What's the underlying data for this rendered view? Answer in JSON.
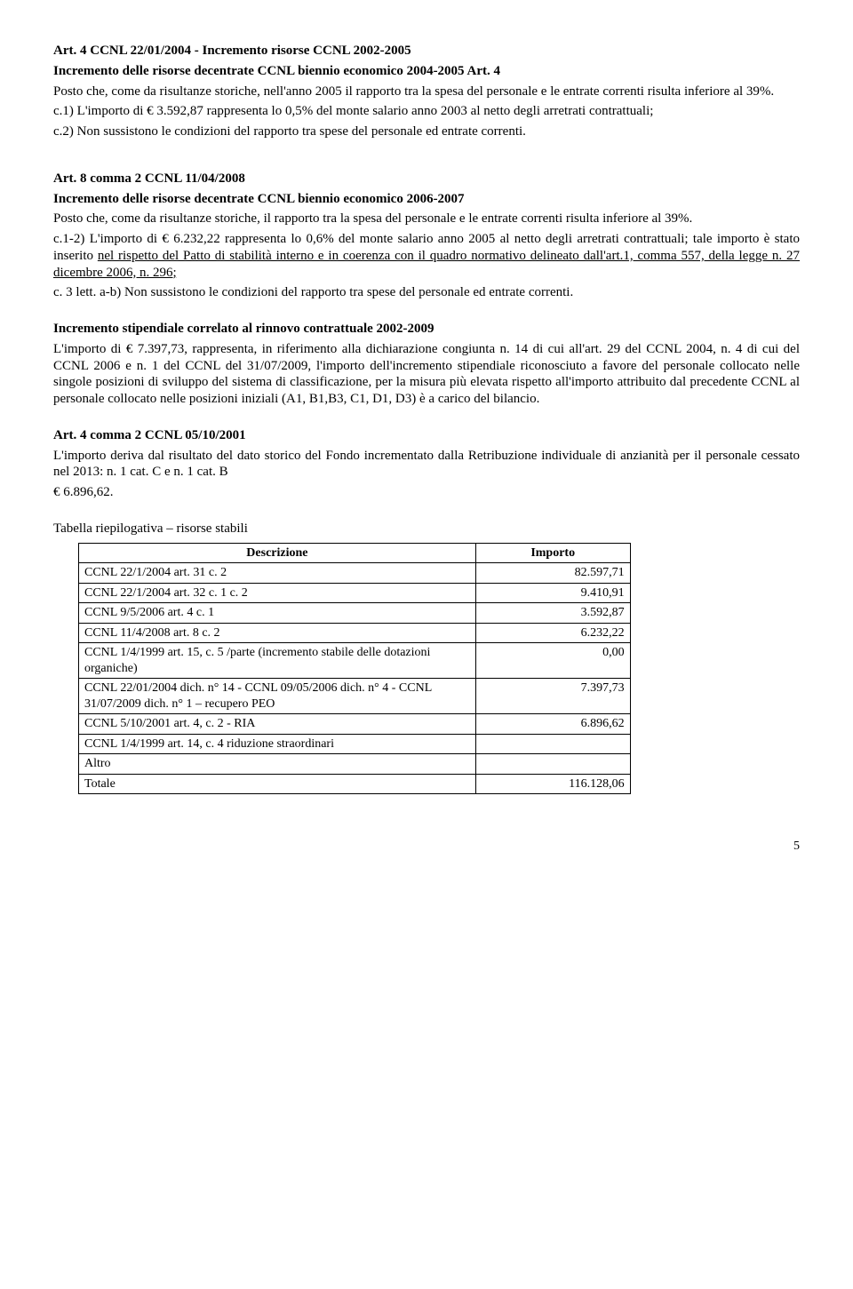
{
  "art4_2004": {
    "title": "Art. 4  CCNL 22/01/2004 - Incremento risorse CCNL 2002-2005",
    "sub": "Incremento delle risorse decentrate CCNL biennio economico 2004-2005 Art. 4",
    "p1": "Posto che, come da risultanze storiche, nell'anno 2005 il rapporto tra la spesa del personale e le entrate correnti risulta inferiore al 39%.",
    "p2": "c.1)  L'importo di €  3.592,87 rappresenta lo 0,5% del monte salario anno 2003 al netto degli arretrati contrattuali;",
    "p3": "c.2) Non sussistono le condizioni del rapporto tra spese del personale ed entrate correnti."
  },
  "art8_2008": {
    "title": "Art. 8 comma 2 CCNL 11/04/2008",
    "sub": "Incremento delle risorse decentrate CCNL biennio economico 2006-2007",
    "p1": "Posto che, come da risultanze storiche, il rapporto tra la spesa del personale e le entrate correnti risulta inferiore al 39%.",
    "p2a": "c.1-2)  L'importo di € 6.232,22 rappresenta lo 0,6% del monte salario anno 2005 al netto degli arretrati contrattuali; tale importo è stato inserito ",
    "p2u1": "nel rispetto del Patto di stabilità interno e in coerenza con il quadro normativo delineato dall'art.1, comma 557, della legge n. 27 dicembre 2006, n. 296;",
    "p3": "c. 3 lett. a-b) Non sussistono le condizioni del rapporto tra spese del personale ed entrate correnti."
  },
  "incremento": {
    "title": "Incremento stipendiale correlato al rinnovo contrattuale 2002-2009",
    "p1": "L'importo di € 7.397,73, rappresenta, in riferimento alla dichiarazione congiunta n. 14 di cui all'art. 29 del CCNL 2004, n. 4 di cui del CCNL 2006 e n. 1 del CCNL del 31/07/2009, l'importo dell'incremento stipendiale riconosciuto a favore del personale collocato nelle singole posizioni di sviluppo del sistema di classificazione, per la misura più elevata rispetto all'importo attribuito dal precedente CCNL  al personale collocato nelle posizioni iniziali (A1, B1,B3, C1, D1, D3) è a carico del bilancio."
  },
  "art4_2001": {
    "title": "Art. 4 comma 2 CCNL 05/10/2001",
    "p1": "L'importo deriva dal risultato del dato storico del Fondo incrementato dalla Retribuzione individuale di anzianità per il personale cessato nel 2013: n. 1 cat. C e n. 1 cat. B",
    "p2": "€ 6.896,62."
  },
  "tabella": {
    "caption": "Tabella riepilogativa – risorse stabili",
    "headers": {
      "desc": "Descrizione",
      "imp": "Importo"
    },
    "rows": [
      {
        "d": "CCNL 22/1/2004 art. 31 c. 2",
        "v": "82.597,71"
      },
      {
        "d": "CCNL 22/1/2004 art. 32 c. 1 c. 2",
        "v": "9.410,91"
      },
      {
        "d": "CCNL 9/5/2006 art. 4 c. 1",
        "v": "3.592,87"
      },
      {
        "d": "CCNL 11/4/2008 art. 8 c. 2",
        "v": "6.232,22"
      },
      {
        "d": "CCNL 1/4/1999 art. 15, c. 5 /parte (incremento stabile delle dotazioni organiche)",
        "v": "0,00"
      },
      {
        "d": "CCNL 22/01/2004 dich.  n° 14 - CCNL 09/05/2006 dich. n° 4 - CCNL 31/07/2009 dich. n° 1 – recupero PEO",
        "v": "7.397,73"
      },
      {
        "d": "CCNL 5/10/2001 art. 4, c. 2 - RIA",
        "v": "6.896,62"
      },
      {
        "d": "CCNL 1/4/1999 art. 14, c. 4 riduzione straordinari",
        "v": ""
      },
      {
        "d": "Altro",
        "v": ""
      },
      {
        "d": "Totale",
        "v": "116.128,06"
      }
    ]
  },
  "page_number": "5"
}
